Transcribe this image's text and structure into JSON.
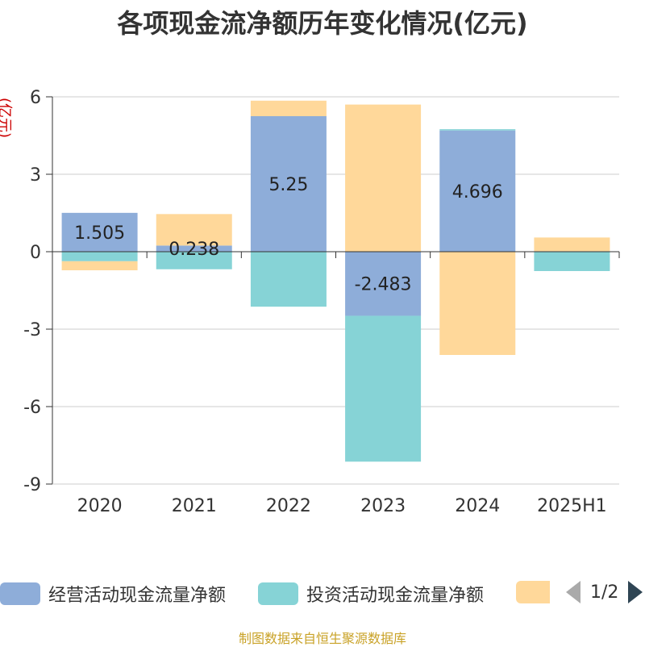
{
  "title": "各项现金流净额历年变化情况(亿元)",
  "source_text": "制图数据来自恒生聚源数据库",
  "legend": {
    "items": [
      {
        "label": "经营活动现金流量净额",
        "color": "#8eadd9"
      },
      {
        "label": "投资活动现金流量净额",
        "color": "#86d3d6"
      },
      {
        "label": "",
        "color": "#ffd89a"
      }
    ],
    "page_label": "1/2"
  },
  "chart_data": {
    "type": "bar",
    "stacked": true,
    "ylabel": "(亿元)",
    "xlabel": "",
    "categories": [
      "2020",
      "2021",
      "2022",
      "2023",
      "2024",
      "2025H1"
    ],
    "ylim": [
      -9,
      6
    ],
    "yticks": [
      6,
      3,
      0,
      -3,
      -6,
      -9
    ],
    "grid": true,
    "legend_position": "bottom",
    "series": [
      {
        "name": "经营活动现金流量净额",
        "color": "#8eadd9",
        "values": [
          1.505,
          0.238,
          5.25,
          -2.483,
          4.696,
          0.02
        ],
        "labels": [
          "1.505",
          "0.238",
          "5.25",
          "-2.483",
          "4.696",
          ""
        ]
      },
      {
        "name": "投资活动现金流量净额",
        "color": "#86d3d6",
        "values": [
          -0.37,
          -0.68,
          -2.13,
          -5.65,
          0.05,
          -0.75
        ]
      },
      {
        "name": "",
        "color": "#ffd89a",
        "values": [
          -0.35,
          1.22,
          0.6,
          5.7,
          -4.0,
          0.53
        ]
      }
    ]
  }
}
